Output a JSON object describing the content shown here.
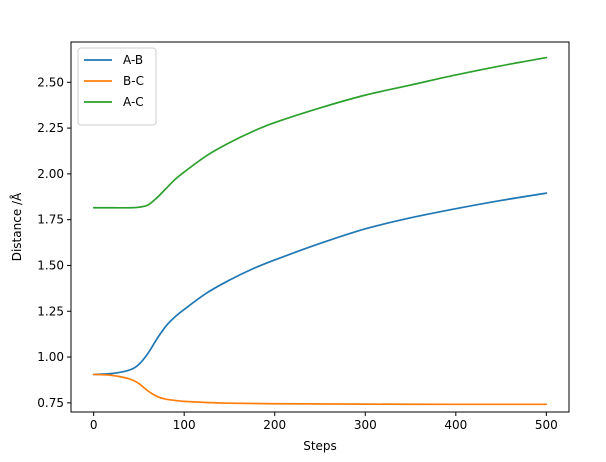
{
  "chart_data": {
    "type": "line",
    "xlabel": "Steps",
    "ylabel": "Distance /Å",
    "xlim": [
      -25,
      525
    ],
    "ylim": [
      0.7,
      2.72
    ],
    "xticks": [
      0,
      100,
      200,
      300,
      400,
      500
    ],
    "xtick_labels": [
      "0",
      "100",
      "200",
      "300",
      "400",
      "500"
    ],
    "yticks": [
      0.75,
      1.0,
      1.25,
      1.5,
      1.75,
      2.0,
      2.25,
      2.5
    ],
    "ytick_labels": [
      "0.75",
      "1.00",
      "1.25",
      "1.50",
      "1.75",
      "2.00",
      "2.25",
      "2.50"
    ],
    "grid": false,
    "legend_position": "top-left",
    "series": [
      {
        "name": "A-B",
        "color": "#1f77b4",
        "x": [
          0,
          20,
          40,
          50,
          60,
          70,
          80,
          90,
          100,
          125,
          150,
          175,
          200,
          250,
          300,
          350,
          400,
          450,
          500
        ],
        "y": [
          0.905,
          0.91,
          0.93,
          0.96,
          1.02,
          1.1,
          1.17,
          1.22,
          1.26,
          1.35,
          1.42,
          1.48,
          1.53,
          1.62,
          1.7,
          1.76,
          1.81,
          1.855,
          1.895
        ]
      },
      {
        "name": "B-C",
        "color": "#ff7f0e",
        "x": [
          0,
          20,
          40,
          50,
          60,
          70,
          80,
          90,
          100,
          125,
          150,
          200,
          300,
          400,
          500
        ],
        "y": [
          0.905,
          0.9,
          0.88,
          0.855,
          0.815,
          0.785,
          0.77,
          0.763,
          0.758,
          0.752,
          0.748,
          0.745,
          0.743,
          0.742,
          0.742
        ]
      },
      {
        "name": "A-C",
        "color": "#2ca02c",
        "x": [
          0,
          20,
          40,
          50,
          60,
          70,
          80,
          90,
          100,
          125,
          150,
          175,
          200,
          250,
          300,
          350,
          400,
          450,
          500
        ],
        "y": [
          1.815,
          1.815,
          1.815,
          1.818,
          1.83,
          1.87,
          1.92,
          1.97,
          2.01,
          2.1,
          2.17,
          2.23,
          2.28,
          2.36,
          2.43,
          2.485,
          2.54,
          2.59,
          2.635
        ]
      }
    ]
  }
}
